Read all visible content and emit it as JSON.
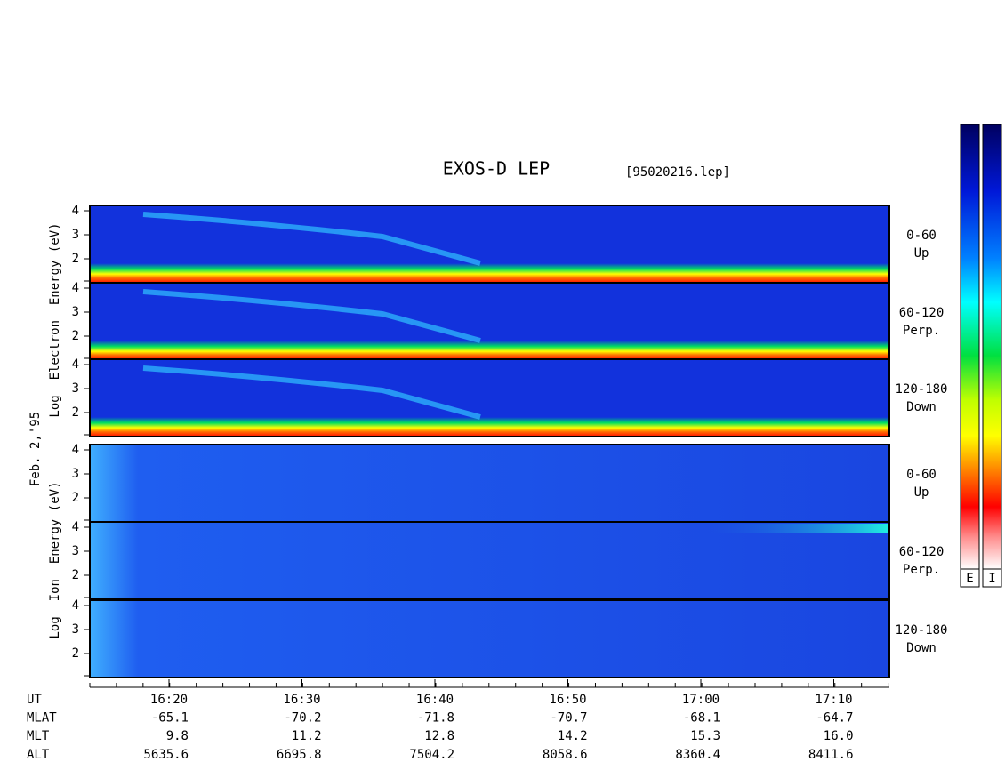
{
  "title": "EXOS-D LEP",
  "file": "[95020216.lep]",
  "date": "Feb. 2,'95",
  "electron_label": "Log  Electron  Energy (eV)",
  "ion_label": "Log  Ion  Energy (eV)",
  "yticks": [
    4,
    3,
    2
  ],
  "electron_panels": [
    {
      "angle": "0-60",
      "direction": "Up"
    },
    {
      "angle": "60-120",
      "direction": "Perp."
    },
    {
      "angle": "120-180",
      "direction": "Down"
    }
  ],
  "ion_panels": [
    {
      "angle": "0-60",
      "direction": "Up"
    },
    {
      "angle": "60-120",
      "direction": "Perp."
    },
    {
      "angle": "120-180",
      "direction": "Down"
    }
  ],
  "colorbars": [
    "E",
    "I"
  ],
  "ephemeris": [
    {
      "label": "UT",
      "values": [
        "16:20",
        "16:30",
        "16:40",
        "16:50",
        "17:00",
        "17:10"
      ]
    },
    {
      "label": "MLAT",
      "values": [
        "-65.1",
        "-70.2",
        "-71.8",
        "-70.7",
        "-68.1",
        "-64.7"
      ]
    },
    {
      "label": "MLT",
      "values": [
        "9.8",
        "11.2",
        "12.8",
        "14.2",
        "15.3",
        "16.0"
      ]
    },
    {
      "label": "ALT",
      "values": [
        "5635.6",
        "6695.8",
        "7504.2",
        "8058.6",
        "8360.4",
        "8411.6"
      ]
    }
  ]
}
